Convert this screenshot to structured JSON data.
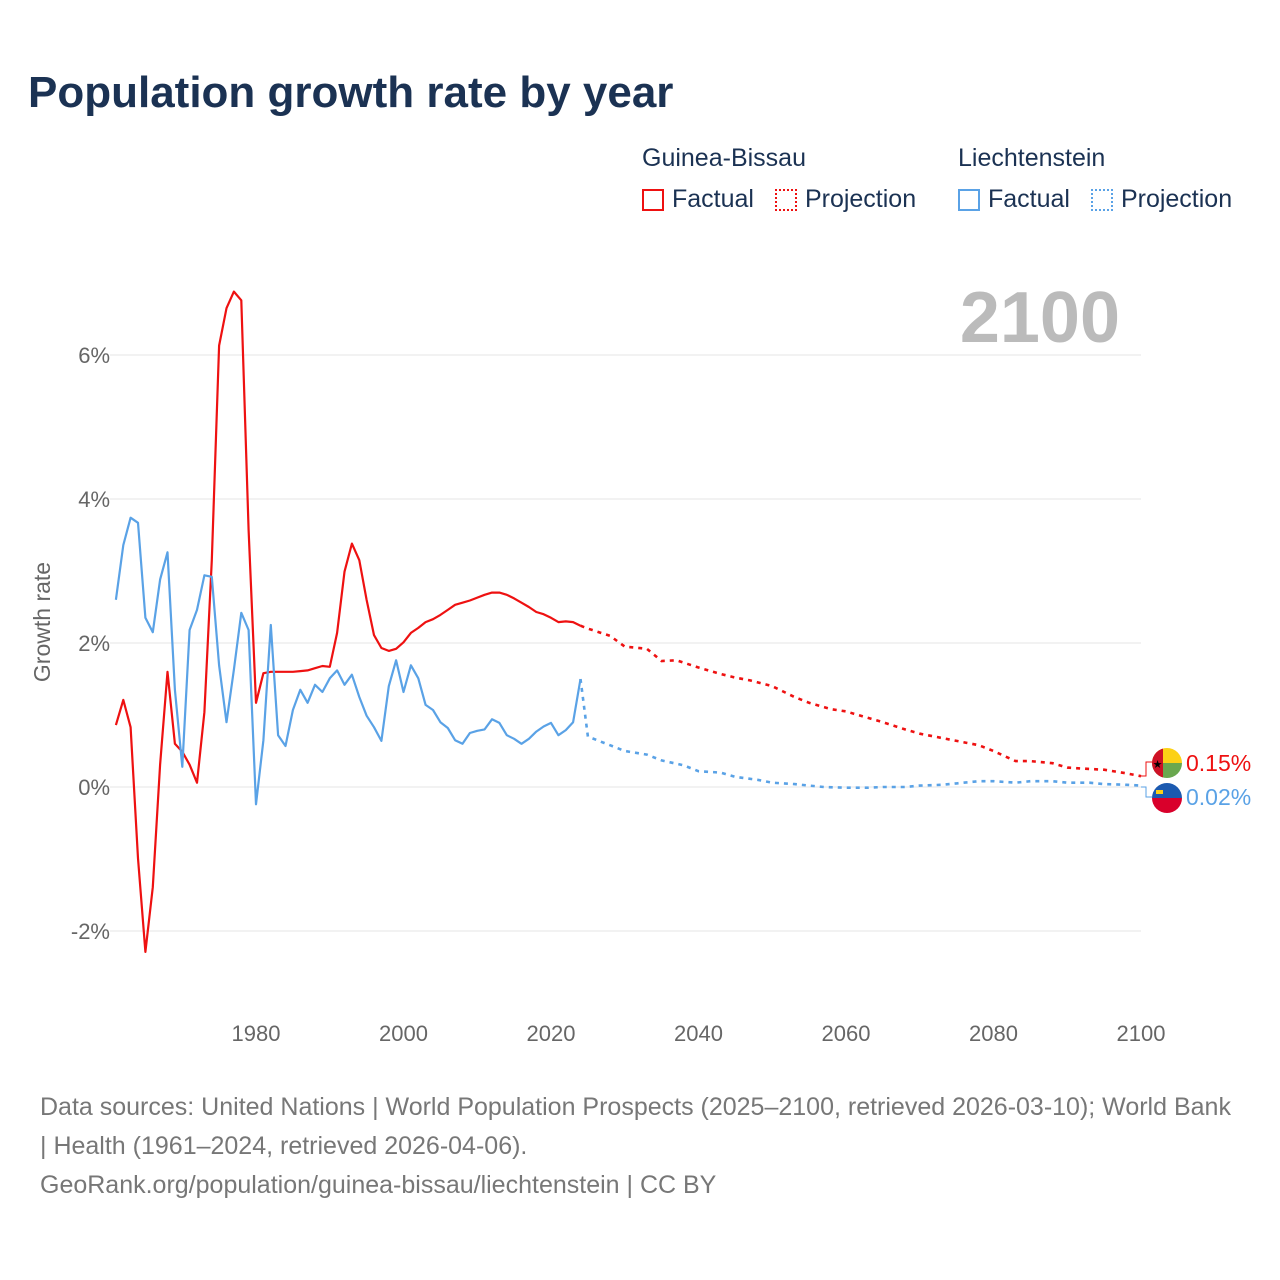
{
  "title": "Population growth rate by year",
  "legend": {
    "groups": [
      {
        "name": "Guinea-Bissau",
        "factual": "Factual",
        "projection": "Projection",
        "color": "#ee1111"
      },
      {
        "name": "Liechtenstein",
        "factual": "Factual",
        "projection": "Projection",
        "color": "#5aa2e6"
      }
    ]
  },
  "year_label": "2100",
  "footer": {
    "line1": "Data sources: United Nations | World Population Prospects (2025–2100, retrieved 2026-03-10); World Bank | Health (1961–2024, retrieved 2026-04-06).",
    "line2": "GeoRank.org/population/guinea-bissau/liechtenstein | CC BY"
  },
  "chart_data": {
    "type": "line",
    "title": "Population growth rate by year",
    "xlabel": "",
    "ylabel": "Growth rate",
    "xlim": [
      1961,
      2100
    ],
    "ylim": [
      -3,
      7
    ],
    "x_ticks": [
      1980,
      2000,
      2020,
      2040,
      2060,
      2080,
      2100
    ],
    "y_ticks": [
      {
        "v": -2,
        "label": "-2%"
      },
      {
        "v": 0,
        "label": "0%"
      },
      {
        "v": 2,
        "label": "2%"
      },
      {
        "v": 4,
        "label": "4%"
      },
      {
        "v": 6,
        "label": "6%"
      }
    ],
    "grid": true,
    "series": [
      {
        "name": "Guinea-Bissau",
        "color": "#ee1111",
        "end_label": "0.15%",
        "factual": {
          "x": [
            1961,
            1962,
            1963,
            1964,
            1965,
            1966,
            1967,
            1968,
            1969,
            1970,
            1971,
            1972,
            1973,
            1974,
            1975,
            1976,
            1977,
            1978,
            1979,
            1980,
            1981,
            1982,
            1983,
            1984,
            1985,
            1986,
            1987,
            1988,
            1989,
            1990,
            1991,
            1992,
            1993,
            1994,
            1995,
            1996,
            1997,
            1998,
            1999,
            2000,
            2001,
            2002,
            2003,
            2004,
            2005,
            2006,
            2007,
            2008,
            2009,
            2010,
            2011,
            2012,
            2013,
            2014,
            2015,
            2016,
            2017,
            2018,
            2019,
            2020,
            2021,
            2022,
            2023,
            2024
          ],
          "y": [
            0.86,
            1.21,
            0.83,
            -0.99,
            -2.29,
            -1.39,
            0.31,
            1.6,
            0.6,
            0.49,
            0.31,
            0.06,
            1.04,
            3.15,
            6.13,
            6.65,
            6.88,
            6.76,
            3.57,
            1.17,
            1.58,
            1.6,
            1.6,
            1.6,
            1.6,
            1.61,
            1.62,
            1.65,
            1.68,
            1.67,
            2.14,
            2.99,
            3.38,
            3.15,
            2.6,
            2.11,
            1.93,
            1.89,
            1.92,
            2.01,
            2.14,
            2.21,
            2.29,
            2.33,
            2.39,
            2.46,
            2.53,
            2.56,
            2.59,
            2.63,
            2.67,
            2.7,
            2.7,
            2.67,
            2.62,
            2.56,
            2.5,
            2.43,
            2.4,
            2.35,
            2.29,
            2.3,
            2.29,
            2.24
          ]
        },
        "projection": {
          "x": [
            2024,
            2025,
            2028,
            2030,
            2033,
            2035,
            2037,
            2040,
            2043,
            2045,
            2047,
            2050,
            2053,
            2055,
            2058,
            2060,
            2063,
            2065,
            2068,
            2070,
            2073,
            2075,
            2078,
            2080,
            2083,
            2085,
            2088,
            2090,
            2093,
            2095,
            2098,
            2100
          ],
          "y": [
            2.24,
            2.2,
            2.1,
            1.95,
            1.92,
            1.75,
            1.76,
            1.66,
            1.57,
            1.52,
            1.48,
            1.4,
            1.25,
            1.17,
            1.08,
            1.05,
            0.96,
            0.9,
            0.8,
            0.74,
            0.68,
            0.64,
            0.58,
            0.5,
            0.36,
            0.36,
            0.33,
            0.27,
            0.25,
            0.24,
            0.19,
            0.15
          ]
        }
      },
      {
        "name": "Liechtenstein",
        "color": "#5aa2e6",
        "end_label": "0.02%",
        "factual": {
          "x": [
            1961,
            1962,
            1963,
            1964,
            1965,
            1966,
            1967,
            1968,
            1969,
            1970,
            1971,
            1972,
            1973,
            1974,
            1975,
            1976,
            1977,
            1978,
            1979,
            1980,
            1981,
            1982,
            1983,
            1984,
            1985,
            1986,
            1987,
            1988,
            1989,
            1990,
            1991,
            1992,
            1993,
            1994,
            1995,
            1996,
            1997,
            1998,
            1999,
            2000,
            2001,
            2002,
            2003,
            2004,
            2005,
            2006,
            2007,
            2008,
            2009,
            2010,
            2011,
            2012,
            2013,
            2014,
            2015,
            2016,
            2017,
            2018,
            2019,
            2020,
            2021,
            2022,
            2023,
            2024
          ],
          "y": [
            2.6,
            3.36,
            3.74,
            3.67,
            2.35,
            2.15,
            2.88,
            3.26,
            1.35,
            0.28,
            2.18,
            2.46,
            2.94,
            2.92,
            1.69,
            0.9,
            1.63,
            2.42,
            2.18,
            -0.24,
            0.65,
            2.25,
            0.72,
            0.57,
            1.07,
            1.35,
            1.17,
            1.42,
            1.32,
            1.51,
            1.62,
            1.42,
            1.56,
            1.25,
            0.99,
            0.83,
            0.64,
            1.4,
            1.76,
            1.32,
            1.69,
            1.51,
            1.14,
            1.07,
            0.9,
            0.82,
            0.65,
            0.6,
            0.75,
            0.78,
            0.8,
            0.94,
            0.89,
            0.72,
            0.67,
            0.6,
            0.67,
            0.77,
            0.84,
            0.89,
            0.72,
            0.79,
            0.9,
            1.5
          ]
        },
        "projection": {
          "x": [
            2024,
            2025,
            2028,
            2030,
            2033,
            2035,
            2038,
            2040,
            2043,
            2045,
            2048,
            2050,
            2053,
            2055,
            2057,
            2060,
            2063,
            2065,
            2068,
            2070,
            2073,
            2075,
            2078,
            2080,
            2083,
            2085,
            2088,
            2090,
            2093,
            2095,
            2098,
            2100
          ],
          "y": [
            1.5,
            0.7,
            0.58,
            0.5,
            0.45,
            0.37,
            0.3,
            0.22,
            0.2,
            0.14,
            0.1,
            0.06,
            0.04,
            0.02,
            0.0,
            -0.01,
            -0.01,
            0.0,
            0.0,
            0.02,
            0.03,
            0.05,
            0.08,
            0.08,
            0.06,
            0.08,
            0.08,
            0.06,
            0.06,
            0.04,
            0.03,
            0.02
          ]
        }
      }
    ]
  }
}
